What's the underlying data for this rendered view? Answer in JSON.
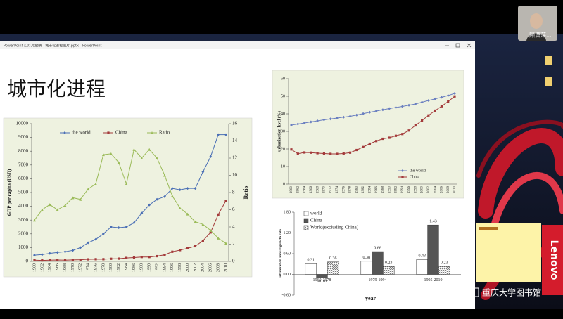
{
  "window": {
    "title": "PowerPoint 幻灯片放映 - 城市化进程图片.pptx - PowerPoint"
  },
  "slide": {
    "title": "城市化进程"
  },
  "video": {
    "name": "顾潇萍..."
  },
  "wallpaper": {
    "brand": "Lenovo"
  },
  "watermark": "重庆大学图书馆",
  "chart_data": [
    {
      "type": "line",
      "ylabel": "GDP per capita (USD)",
      "y2label": "Ratio",
      "categories": [
        "1960",
        "1962",
        "1964",
        "1966",
        "1968",
        "1970",
        "1972",
        "1974",
        "1976",
        "1978",
        "1980",
        "1982",
        "1984",
        "1986",
        "1988",
        "1990",
        "1992",
        "1994",
        "1996",
        "1998",
        "2000",
        "2002",
        "2004",
        "2006",
        "2008",
        "2010"
      ],
      "ylim": [
        0,
        10000
      ],
      "yticks": [
        0,
        1000,
        2000,
        3000,
        4000,
        5000,
        6000,
        7000,
        8000,
        9000,
        10000
      ],
      "y2lim": [
        0,
        16
      ],
      "y2ticks": [
        0,
        2,
        4,
        6,
        8,
        10,
        12,
        14,
        16
      ],
      "legend": "top",
      "series": [
        {
          "name": "the world",
          "color": "#4a6fb5",
          "marker": "diamond",
          "values": [
            450,
            500,
            580,
            650,
            700,
            800,
            1000,
            1350,
            1600,
            2000,
            2500,
            2450,
            2500,
            2800,
            3500,
            4100,
            4500,
            4700,
            5300,
            5200,
            5300,
            5300,
            6500,
            7600,
            9200,
            9200
          ]
        },
        {
          "name": "China",
          "color": "#a33a3a",
          "marker": "square",
          "values": [
            90,
            70,
            90,
            100,
            90,
            110,
            120,
            150,
            160,
            160,
            190,
            200,
            250,
            280,
            320,
            320,
            380,
            480,
            700,
            820,
            950,
            1100,
            1500,
            2100,
            3400,
            4400
          ]
        },
        {
          "name": "Ratio",
          "color": "#9bbb59",
          "marker": "triangle",
          "axis": "y2",
          "values": [
            4.8,
            6,
            6.6,
            6,
            6.5,
            7.4,
            7.2,
            8.4,
            9,
            12.4,
            12.5,
            11.5,
            9,
            13,
            12,
            13,
            12,
            10,
            7.6,
            6.2,
            5.5,
            4.6,
            4.3,
            3.6,
            2.7,
            2.1
          ]
        }
      ]
    },
    {
      "type": "line",
      "ylabel": "urbanization level (%)",
      "categories": [
        "1960",
        "1962",
        "1964",
        "1966",
        "1968",
        "1970",
        "1972",
        "1974",
        "1976",
        "1978",
        "1980",
        "1982",
        "1984",
        "1986",
        "1988",
        "1990",
        "1992",
        "1994",
        "1996",
        "1998",
        "2000",
        "2002",
        "2004",
        "2006",
        "2008",
        "2010"
      ],
      "ylim": [
        0,
        60
      ],
      "yticks": [
        0,
        10,
        20,
        30,
        40,
        50,
        60
      ],
      "legend": "bottom-right",
      "series": [
        {
          "name": "the world",
          "color": "#6a7fc0",
          "marker": "diamond",
          "values": [
            33.6,
            34.2,
            34.8,
            35.4,
            36,
            36.6,
            37.1,
            37.6,
            38.1,
            38.6,
            39.3,
            40.1,
            40.9,
            41.6,
            42.3,
            43,
            43.6,
            44.2,
            44.9,
            45.6,
            46.6,
            47.6,
            48.5,
            49.4,
            50.4,
            51.6
          ]
        },
        {
          "name": "China",
          "color": "#a33a3a",
          "marker": "square",
          "values": [
            19.7,
            17.3,
            18,
            17.9,
            17.6,
            17.4,
            17.2,
            17.2,
            17.4,
            17.9,
            19.4,
            21.1,
            23,
            24.5,
            25.8,
            26.4,
            27.5,
            28.5,
            30.5,
            33.4,
            36.2,
            39.1,
            41.8,
            44.3,
            47,
            49.9
          ]
        }
      ]
    },
    {
      "type": "bar",
      "ylabel": "urbanization annual growth rate",
      "xlabel": "year",
      "categories": [
        "1960-1978",
        "1979-1994",
        "1995-2010"
      ],
      "ylim": [
        -0.6,
        1.8
      ],
      "yticks": [
        {
          "value": -0.6,
          "label": "-0.60"
        },
        {
          "value": 0,
          "label": "0.00"
        },
        {
          "value": 0.6,
          "label": "0.60"
        },
        {
          "value": 1.2,
          "label": "1.20"
        },
        {
          "value": 1.8,
          "label": "1.80"
        }
      ],
      "legend": "top-left",
      "series": [
        {
          "name": "world",
          "color": "#ffffff",
          "values": [
            0.31,
            0.38,
            0.43
          ]
        },
        {
          "name": "China",
          "color": "#555555",
          "values": [
            -0.1,
            0.66,
            1.43
          ],
          "value_labels": [
            "-0.10",
            "0.66",
            "1.43"
          ]
        },
        {
          "name": "World(excluding China)",
          "color": "#bbbbbb",
          "values": [
            0.36,
            0.23,
            0.23
          ]
        }
      ]
    }
  ]
}
